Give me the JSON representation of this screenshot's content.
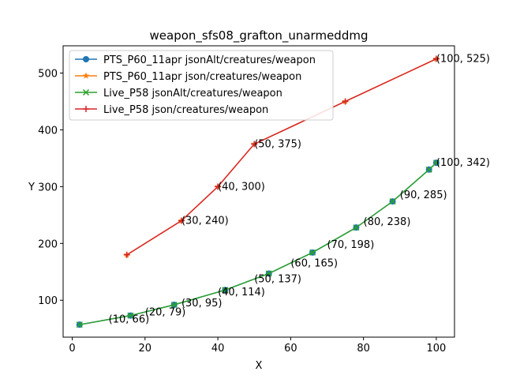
{
  "chart_data": {
    "type": "line",
    "title": "weapon_sfs08_grafton_unarmeddmg",
    "xlabel": "X",
    "ylabel": "Y",
    "xlim": [
      -2.5,
      105
    ],
    "ylim": [
      35,
      548
    ],
    "xticks": [
      0,
      20,
      40,
      60,
      80,
      100
    ],
    "yticks": [
      100,
      200,
      300,
      400,
      500
    ],
    "grid": false,
    "legend_position": "upper-left",
    "series": [
      {
        "name": "PTS_P60_11apr jsonAlt/creatures/weapon",
        "color": "#1f77b4",
        "marker": "circle",
        "x": [
          2,
          16,
          28,
          42,
          54,
          66,
          78,
          88,
          98,
          100
        ],
        "y": [
          57,
          73,
          92,
          118,
          147,
          184,
          228,
          274,
          330,
          342
        ]
      },
      {
        "name": "PTS_P60_11apr json/creatures/weapon",
        "color": "#ff7f0e",
        "marker": "star",
        "x": [
          15,
          30,
          40,
          50,
          75,
          100
        ],
        "y": [
          180,
          240,
          300,
          375,
          450,
          525
        ]
      },
      {
        "name": "Live_P58 jsonAlt/creatures/weapon",
        "color": "#2ca02c",
        "marker": "x",
        "x": [
          2,
          16,
          28,
          42,
          54,
          66,
          78,
          88,
          98,
          100
        ],
        "y": [
          57,
          73,
          92,
          118,
          147,
          184,
          228,
          274,
          330,
          342
        ]
      },
      {
        "name": "Live_P58 json/creatures/weapon",
        "color": "#d62728",
        "marker": "plus",
        "x": [
          15,
          30,
          40,
          50,
          75,
          100
        ],
        "y": [
          180,
          240,
          300,
          375,
          450,
          525
        ]
      }
    ],
    "annotations": [
      {
        "text": "(100, 525)",
        "x": 100,
        "y": 525
      },
      {
        "text": "(50, 375)",
        "x": 50,
        "y": 375
      },
      {
        "text": "(40, 300)",
        "x": 40,
        "y": 300
      },
      {
        "text": "(30, 240)",
        "x": 30,
        "y": 240
      },
      {
        "text": "(100, 342)",
        "x": 100,
        "y": 342
      },
      {
        "text": "(90, 285)",
        "x": 90,
        "y": 285
      },
      {
        "text": "(80, 238)",
        "x": 80,
        "y": 238
      },
      {
        "text": "(70, 198)",
        "x": 70,
        "y": 198
      },
      {
        "text": "(60, 165)",
        "x": 60,
        "y": 165
      },
      {
        "text": "(50, 137)",
        "x": 50,
        "y": 137
      },
      {
        "text": "(40, 114)",
        "x": 40,
        "y": 114
      },
      {
        "text": "(30, 95)",
        "x": 30,
        "y": 95
      },
      {
        "text": "(20, 79)",
        "x": 20,
        "y": 79
      },
      {
        "text": "(10, 66)",
        "x": 10,
        "y": 66
      }
    ]
  }
}
